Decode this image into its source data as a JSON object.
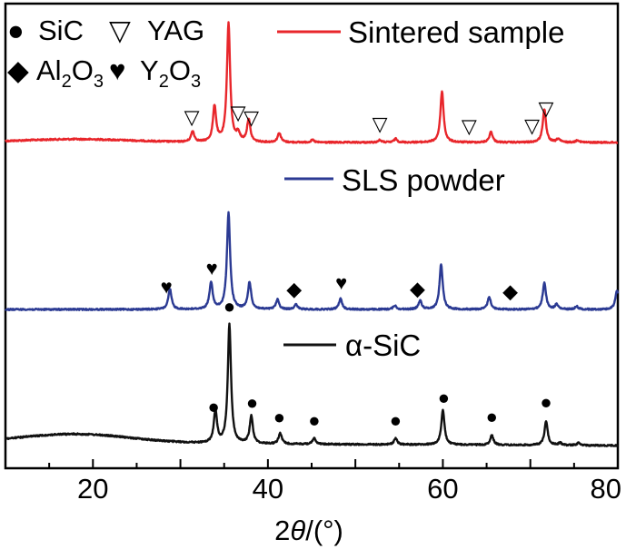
{
  "chart_data": {
    "type": "line",
    "title": "",
    "xlabel_parts": [
      "2",
      "θ",
      "/(°)"
    ],
    "ylabel": "",
    "xlim": [
      10,
      80
    ],
    "x_ticks": [
      20,
      40,
      60,
      80
    ],
    "x_tick_labels": [
      "20",
      "40",
      "60",
      "80"
    ],
    "grid": false,
    "phase_legend": [
      {
        "name": "SiC",
        "symbol": "circle",
        "glyph": "●",
        "parts": [
          "SiC"
        ]
      },
      {
        "name": "YAG",
        "symbol": "triangle-down-open",
        "glyph": "▽",
        "parts": [
          "YAG"
        ]
      },
      {
        "name": "Al2O3",
        "symbol": "diamond",
        "glyph": "◆",
        "parts": [
          "Al",
          "2",
          "O",
          "3"
        ]
      },
      {
        "name": "Y2O3",
        "symbol": "heart",
        "glyph": "♥",
        "parts": [
          "Y",
          "2",
          "O",
          "3"
        ]
      }
    ],
    "series": [
      {
        "name": "Sintered sample",
        "color": "#e8262b",
        "baseline": 0.0,
        "background": "hump",
        "peaks": [
          {
            "x": 31.4,
            "h": 0.09
          },
          {
            "x": 33.9,
            "h": 0.3
          },
          {
            "x": 35.5,
            "h": 1.0
          },
          {
            "x": 36.6,
            "h": 0.07
          },
          {
            "x": 37.8,
            "h": 0.19
          },
          {
            "x": 41.3,
            "h": 0.08
          },
          {
            "x": 45.1,
            "h": 0.02
          },
          {
            "x": 52.8,
            "h": 0.02
          },
          {
            "x": 54.6,
            "h": 0.03
          },
          {
            "x": 59.9,
            "h": 0.43
          },
          {
            "x": 65.5,
            "h": 0.09
          },
          {
            "x": 71.6,
            "h": 0.28
          },
          {
            "x": 73.2,
            "h": 0.03
          },
          {
            "x": 75.4,
            "h": 0.02
          }
        ],
        "markers": [
          {
            "phase": "YAG",
            "x": 31.3
          },
          {
            "phase": "YAG",
            "x": 36.6
          },
          {
            "phase": "YAG",
            "x": 38.1
          },
          {
            "phase": "YAG",
            "x": 52.8
          },
          {
            "phase": "YAG",
            "x": 63.0
          },
          {
            "phase": "YAG",
            "x": 70.2
          },
          {
            "phase": "YAG",
            "x": 71.8
          }
        ]
      },
      {
        "name": "SLS powder",
        "color": "#2b3a93",
        "baseline": 0.0,
        "background": "flat",
        "peaks": [
          {
            "x": 28.8,
            "h": 0.21
          },
          {
            "x": 33.5,
            "h": 0.28
          },
          {
            "x": 35.5,
            "h": 1.0
          },
          {
            "x": 37.9,
            "h": 0.28
          },
          {
            "x": 41.1,
            "h": 0.1
          },
          {
            "x": 43.2,
            "h": 0.05
          },
          {
            "x": 48.3,
            "h": 0.11
          },
          {
            "x": 54.5,
            "h": 0.04
          },
          {
            "x": 57.4,
            "h": 0.09
          },
          {
            "x": 59.8,
            "h": 0.47
          },
          {
            "x": 65.3,
            "h": 0.13
          },
          {
            "x": 71.6,
            "h": 0.28
          },
          {
            "x": 73.0,
            "h": 0.05
          },
          {
            "x": 75.3,
            "h": 0.03
          },
          {
            "x": 79.9,
            "h": 0.2
          }
        ],
        "markers": [
          {
            "phase": "Y2O3",
            "x": 28.4
          },
          {
            "phase": "Y2O3",
            "x": 33.6
          },
          {
            "phase": "Al2O3",
            "x": 43.0
          },
          {
            "phase": "Y2O3",
            "x": 48.4
          },
          {
            "phase": "Al2O3",
            "x": 57.1
          },
          {
            "phase": "Al2O3",
            "x": 67.7
          }
        ]
      },
      {
        "name": "α-SiC",
        "color": "#111111",
        "baseline": 0.0,
        "background": "hump",
        "peaks": [
          {
            "x": 34.0,
            "h": 0.27
          },
          {
            "x": 35.6,
            "h": 1.0
          },
          {
            "x": 38.1,
            "h": 0.23
          },
          {
            "x": 41.4,
            "h": 0.09
          },
          {
            "x": 45.3,
            "h": 0.05
          },
          {
            "x": 54.6,
            "h": 0.05
          },
          {
            "x": 60.0,
            "h": 0.29
          },
          {
            "x": 65.6,
            "h": 0.08
          },
          {
            "x": 71.8,
            "h": 0.2
          },
          {
            "x": 73.4,
            "h": 0.02
          },
          {
            "x": 75.5,
            "h": 0.02
          }
        ],
        "markers": [
          {
            "phase": "SiC",
            "x": 33.8
          },
          {
            "phase": "SiC",
            "x": 35.6
          },
          {
            "phase": "SiC",
            "x": 38.2
          },
          {
            "phase": "SiC",
            "x": 41.3
          },
          {
            "phase": "SiC",
            "x": 45.3
          },
          {
            "phase": "SiC",
            "x": 54.6
          },
          {
            "phase": "SiC",
            "x": 60.1
          },
          {
            "phase": "SiC",
            "x": 65.6
          },
          {
            "phase": "SiC",
            "x": 71.8
          }
        ]
      }
    ]
  }
}
